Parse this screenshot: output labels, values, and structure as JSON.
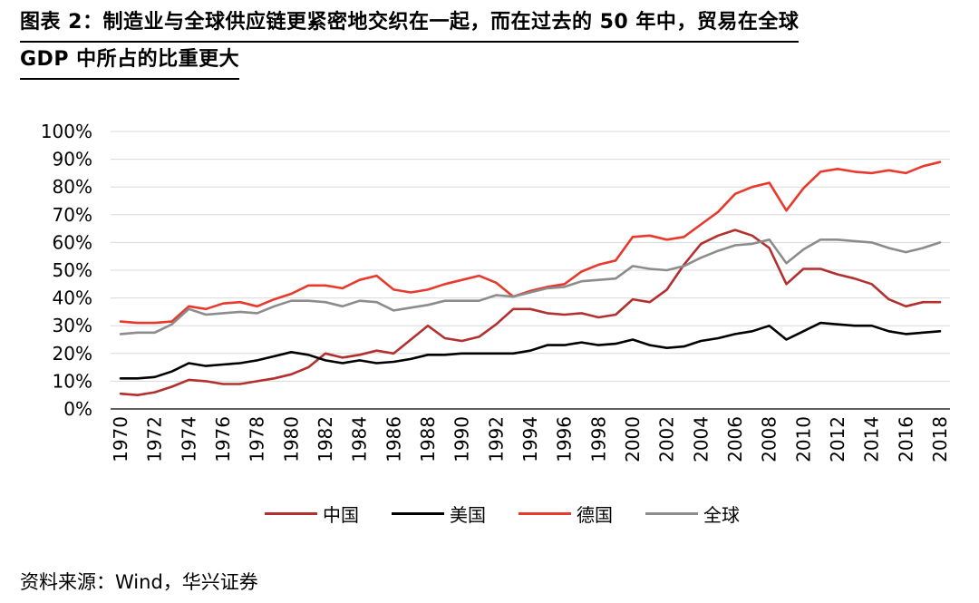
{
  "title": {
    "line1": "图表 2：制造业与全球供应链更紧密地交织在一起，而在过去的 50 年中，贸易在全球",
    "line2": "GDP 中所占的比重更大"
  },
  "source": "资料来源：Wind，华兴证券",
  "colors": {
    "china": "#b2302e",
    "usa": "#000000",
    "germany": "#e8392d",
    "world": "#8c8c8c",
    "grid": "#d9d9d9"
  },
  "chart_data": {
    "type": "line",
    "title": "图表 2：制造业与全球供应链更紧密地交织在一起，而在过去的 50 年中，贸易在全球 GDP 中所占的比重更大",
    "xlabel": "",
    "ylabel": "",
    "ylim": [
      0,
      100
    ],
    "y_ticks": [
      "0%",
      "10%",
      "20%",
      "30%",
      "40%",
      "50%",
      "60%",
      "70%",
      "80%",
      "90%",
      "100%"
    ],
    "x_ticks": [
      "1970",
      "1972",
      "1974",
      "1976",
      "1978",
      "1980",
      "1982",
      "1984",
      "1986",
      "1988",
      "1990",
      "1992",
      "1994",
      "1996",
      "1998",
      "2000",
      "2002",
      "2004",
      "2006",
      "2008",
      "2010",
      "2012",
      "2014",
      "2016",
      "2018"
    ],
    "grid": "horizontal",
    "legend_position": "bottom",
    "x": [
      1970,
      1971,
      1972,
      1973,
      1974,
      1975,
      1976,
      1977,
      1978,
      1979,
      1980,
      1981,
      1982,
      1983,
      1984,
      1985,
      1986,
      1987,
      1988,
      1989,
      1990,
      1991,
      1992,
      1993,
      1994,
      1995,
      1996,
      1997,
      1998,
      1999,
      2000,
      2001,
      2002,
      2003,
      2004,
      2005,
      2006,
      2007,
      2008,
      2009,
      2010,
      2011,
      2012,
      2013,
      2014,
      2015,
      2016,
      2017,
      2018
    ],
    "series": [
      {
        "name": "中国",
        "color": "#b2302e",
        "values": [
          5.5,
          5,
          6,
          8,
          10.5,
          10,
          9,
          9,
          10,
          11,
          12.5,
          15,
          20,
          18.5,
          19.5,
          21,
          20,
          25,
          30,
          25.5,
          24.5,
          26,
          30.5,
          36,
          36,
          34.5,
          34,
          34.5,
          33,
          34,
          39.5,
          38.5,
          43,
          52,
          59.5,
          62.5,
          64.5,
          62.5,
          58,
          45,
          50.5,
          50.5,
          48.5,
          47,
          45,
          39.5,
          37,
          38.5,
          38.5
        ]
      },
      {
        "name": "美国",
        "color": "#000000",
        "values": [
          11,
          11,
          11.5,
          13.5,
          16.5,
          15.5,
          16,
          16.5,
          17.5,
          19,
          20.5,
          19.5,
          17.5,
          16.5,
          17.5,
          16.5,
          17,
          18,
          19.5,
          19.5,
          20,
          20,
          20,
          20,
          21,
          23,
          23,
          24,
          23,
          23.5,
          25,
          23,
          22,
          22.5,
          24.5,
          25.5,
          27,
          28,
          30,
          25,
          28,
          31,
          30.5,
          30,
          30,
          28,
          27,
          27.5,
          28
        ]
      },
      {
        "name": "德国",
        "color": "#e8392d",
        "values": [
          31.5,
          31,
          31,
          31.5,
          37,
          36,
          38,
          38.5,
          37,
          39.5,
          41.5,
          44.5,
          44.5,
          43.5,
          46.5,
          48,
          43,
          42,
          43,
          45,
          46.5,
          48,
          45.5,
          40.5,
          42.5,
          44,
          45,
          49.5,
          52,
          53.5,
          62,
          62.5,
          61,
          62,
          66.5,
          71,
          77.5,
          80,
          81.5,
          71.5,
          79.5,
          85.5,
          86.5,
          85.5,
          85,
          86,
          85,
          87.5,
          89
        ]
      },
      {
        "name": "全球",
        "color": "#8c8c8c",
        "values": [
          27,
          27.5,
          27.5,
          30.5,
          36,
          34,
          34.5,
          35,
          34.5,
          37,
          39,
          39,
          38.5,
          37,
          39,
          38.5,
          35.5,
          36.5,
          37.5,
          39,
          39,
          39,
          41,
          40.5,
          42,
          43.5,
          44,
          46,
          46.5,
          47,
          51.5,
          50.5,
          50,
          51.5,
          54.5,
          57,
          59,
          59.5,
          61,
          52.5,
          57.5,
          61,
          61,
          60.5,
          60,
          58,
          56.5,
          58,
          60
        ]
      }
    ]
  }
}
